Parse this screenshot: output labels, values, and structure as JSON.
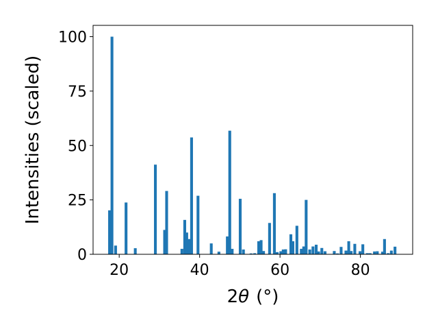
{
  "chart_data": {
    "type": "bar",
    "xlabel_prefix": "2",
    "xlabel_symbol": "θ",
    "xlabel_unit": "(°)",
    "ylabel": "Intensities (scaled)",
    "xlim": [
      13.5,
      93
    ],
    "ylim": [
      0,
      100
    ],
    "xticks": [
      20,
      40,
      60,
      80
    ],
    "yticks": [
      0,
      25,
      50,
      75,
      100
    ],
    "grid": false,
    "bar_color": "#1f77b4",
    "bar_width": 0.7,
    "x": [
      17.6,
      18.2,
      19.1,
      21.7,
      24.0,
      29.0,
      31.3,
      31.8,
      35.6,
      36.3,
      36.8,
      37.4,
      38.0,
      39.6,
      42.9,
      44.8,
      46.9,
      47.5,
      48.1,
      50.1,
      50.9,
      52.8,
      53.7,
      54.7,
      55.3,
      55.9,
      57.4,
      58.6,
      59.3,
      60.2,
      60.8,
      61.4,
      62.7,
      63.2,
      64.2,
      65.3,
      65.9,
      66.5,
      67.4,
      68.2,
      69.0,
      69.6,
      70.4,
      71.2,
      73.5,
      74.3,
      75.2,
      76.4,
      77.1,
      77.7,
      78.6,
      79.9,
      80.6,
      81.7,
      82.4,
      83.5,
      84.2,
      85.5,
      86.0,
      86.9,
      87.7,
      88.6
    ],
    "values": [
      20.2,
      100,
      4,
      23.8,
      2.8,
      41.2,
      11.2,
      29.1,
      2.5,
      15.8,
      10,
      7,
      53.7,
      26.9,
      5,
      1.2,
      8.2,
      56.8,
      2.5,
      25.5,
      2.2,
      0.4,
      0.5,
      6,
      6.5,
      1.5,
      14.4,
      28.1,
      1,
      1.4,
      2.2,
      2.3,
      9.2,
      6,
      13.1,
      2.5,
      3.6,
      25,
      2.2,
      3.6,
      4.4,
      1.3,
      2.9,
      1.4,
      1.5,
      0.4,
      3.4,
      1.7,
      6,
      1.5,
      4.8,
      1.4,
      4.6,
      0.5,
      0.5,
      1.3,
      1.4,
      1.2,
      7,
      0.5,
      1.7,
      3.5
    ]
  }
}
